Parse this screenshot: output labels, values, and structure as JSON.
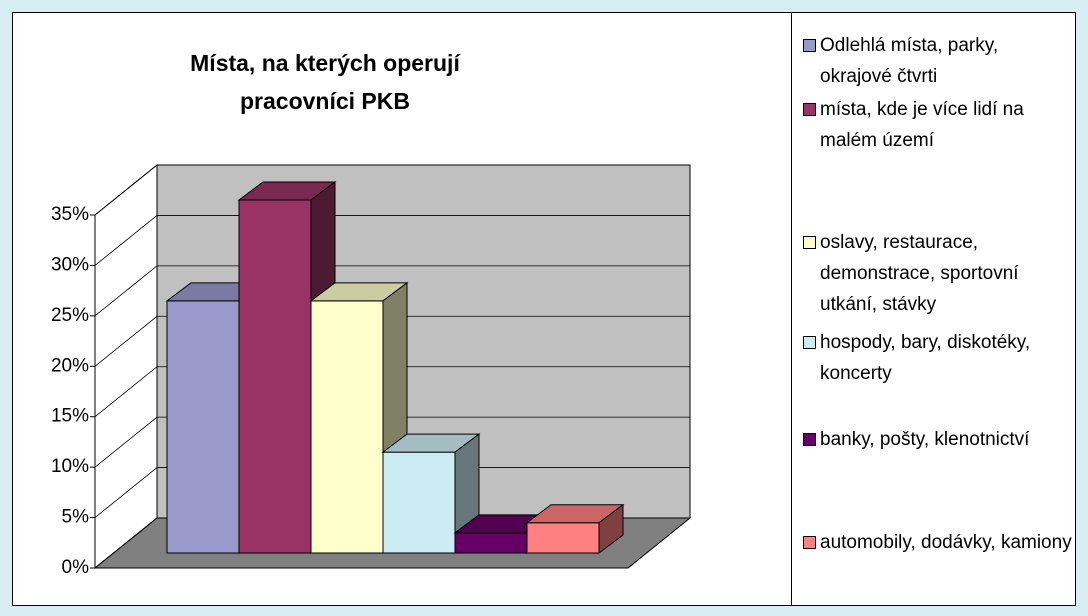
{
  "chart_data": {
    "type": "bar3d",
    "title": "Místa, na kterých operují pracovníci PKB",
    "ylim": [
      0,
      35
    ],
    "yticks": [
      {
        "value": 0,
        "label": "0%"
      },
      {
        "value": 5,
        "label": "5%"
      },
      {
        "value": 10,
        "label": "10%"
      },
      {
        "value": 15,
        "label": "15%"
      },
      {
        "value": 20,
        "label": "20%"
      },
      {
        "value": 25,
        "label": "25%"
      },
      {
        "value": 30,
        "label": "30%"
      },
      {
        "value": 35,
        "label": "35%"
      }
    ],
    "grid": true,
    "legend": "right",
    "series": [
      {
        "name": "Odlehlá místa, parky, okrajové čtvrti",
        "color": "#9999cc",
        "values": [
          25
        ]
      },
      {
        "name": "místa, kde je více lidí na malém území",
        "color": "#993366",
        "values": [
          35
        ]
      },
      {
        "name": "oslavy, restaurace, demonstrace, sportovní utkání, stávky",
        "color": "#ffffcc",
        "values": [
          25
        ]
      },
      {
        "name": "hospody, bary, diskotéky, koncerty",
        "color": "#ccecf4",
        "values": [
          10
        ]
      },
      {
        "name": "banky, pošty, klenotnictví",
        "color": "#660066",
        "values": [
          2
        ]
      },
      {
        "name": "automobily, dodávky, kamiony",
        "color": "#ff8080",
        "values": [
          3
        ]
      }
    ]
  }
}
